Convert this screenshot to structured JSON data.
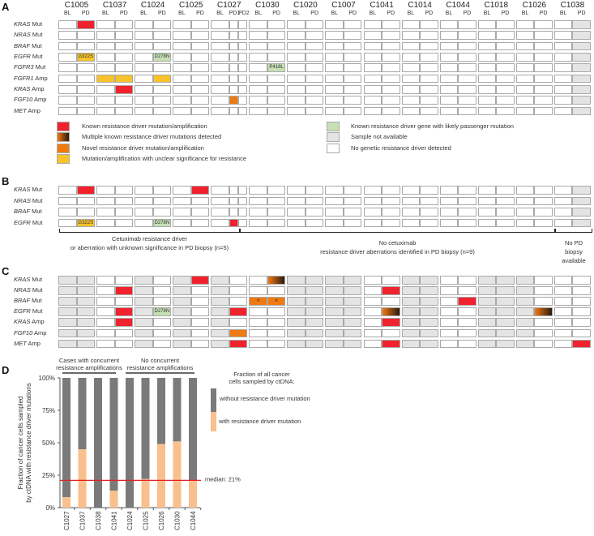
{
  "colors": {
    "known": "#f0222e",
    "multiple": "linear-gradient(90deg,#f07a10,#2a1a10)",
    "novel": "#f07a10",
    "unclear": "#f7c22a",
    "passenger": "#c6e0b4",
    "na": "#e4e4e4",
    "none": "#ffffff"
  },
  "patients": [
    "C1005",
    "C1037",
    "C1024",
    "C1025",
    "C1027",
    "C1030",
    "C1020",
    "C1007",
    "C1041",
    "C1014",
    "C1044",
    "C1018",
    "C1026",
    "C1038"
  ],
  "panels": [
    {
      "letter": "A",
      "show_header": true,
      "samples_override": {
        "C1027": [
          "BL",
          "PD1",
          "PD2"
        ]
      },
      "rows": [
        {
          "gene": "KRAS",
          "type": "Mut"
        },
        {
          "gene": "NRAS",
          "type": "Mut"
        },
        {
          "gene": "BRAF",
          "type": "Mut"
        },
        {
          "gene": "EGFR",
          "type": "Mut"
        },
        {
          "gene": "FGFR3",
          "type": "Mut"
        },
        {
          "gene": "FGFR1",
          "type": "Amp"
        },
        {
          "gene": "KRAS",
          "type": "Amp"
        },
        {
          "gene": "FGF10",
          "type": "Amp"
        },
        {
          "gene": "MET",
          "type": "Amp"
        }
      ],
      "unavailable": [
        [
          "C1038",
          "PD"
        ]
      ],
      "marks": [
        {
          "row": "KRAS Mut",
          "patient": "C1005",
          "sample": "PD",
          "status": "known"
        },
        {
          "row": "EGFR Mut",
          "patient": "C1005",
          "sample": "PD",
          "status": "unclear",
          "label": "G322S"
        },
        {
          "row": "EGFR Mut",
          "patient": "C1024",
          "sample": "PD",
          "status": "passenger",
          "label": "D278N"
        },
        {
          "row": "FGFR3 Mut",
          "patient": "C1030",
          "sample": "PD",
          "status": "passenger",
          "label": "P418L"
        },
        {
          "row": "FGFR1 Amp",
          "patient": "C1037",
          "sample": "BL",
          "status": "unclear"
        },
        {
          "row": "FGFR1 Amp",
          "patient": "C1037",
          "sample": "PD",
          "status": "unclear"
        },
        {
          "row": "FGFR1 Amp",
          "patient": "C1024",
          "sample": "PD",
          "status": "unclear"
        },
        {
          "row": "KRAS Amp",
          "patient": "C1037",
          "sample": "PD",
          "status": "known"
        },
        {
          "row": "FGF10 Amp",
          "patient": "C1027",
          "sample": "PD1",
          "status": "novel"
        }
      ]
    },
    {
      "letter": "B",
      "show_header": false,
      "samples_override": {
        "C1027": [
          "BL",
          "PD1",
          "PD2"
        ]
      },
      "rows": [
        {
          "gene": "KRAS",
          "type": "Mut"
        },
        {
          "gene": "NRAS",
          "type": "Mut"
        },
        {
          "gene": "BRAF",
          "type": "Mut"
        },
        {
          "gene": "EGFR",
          "type": "Mut"
        }
      ],
      "unavailable": [
        [
          "C1038",
          "PD"
        ]
      ],
      "marks": [
        {
          "row": "KRAS Mut",
          "patient": "C1005",
          "sample": "PD",
          "status": "known"
        },
        {
          "row": "KRAS Mut",
          "patient": "C1025",
          "sample": "PD",
          "status": "known"
        },
        {
          "row": "EGFR Mut",
          "patient": "C1005",
          "sample": "PD",
          "status": "unclear",
          "label": "G322S"
        },
        {
          "row": "EGFR Mut",
          "patient": "C1024",
          "sample": "PD",
          "status": "passenger",
          "label": "D278N"
        },
        {
          "row": "EGFR Mut",
          "patient": "C1027",
          "sample": "PD1",
          "status": "known"
        }
      ]
    },
    {
      "letter": "C",
      "show_header": false,
      "samples_override": {},
      "rows": [
        {
          "gene": "KRAS",
          "type": "Mut"
        },
        {
          "gene": "NRAS",
          "type": "Mut"
        },
        {
          "gene": "BRAF",
          "type": "Mut"
        },
        {
          "gene": "EGFR",
          "type": "Mut"
        },
        {
          "gene": "KRAS",
          "type": "Amp"
        },
        {
          "gene": "FGF10",
          "type": "Amp"
        },
        {
          "gene": "MET",
          "type": "Amp"
        }
      ],
      "unavailable": [
        [
          "C1005",
          "BL"
        ],
        [
          "C1005",
          "PD"
        ],
        [
          "C1024",
          "BL"
        ],
        [
          "C1025",
          "BL"
        ],
        [
          "C1027",
          "BL"
        ],
        [
          "C1020",
          "BL"
        ],
        [
          "C1020",
          "PD"
        ],
        [
          "C1007",
          "BL"
        ],
        [
          "C1007",
          "PD"
        ],
        [
          "C1014",
          "BL"
        ],
        [
          "C1014",
          "PD"
        ],
        [
          "C1018",
          "BL"
        ],
        [
          "C1018",
          "PD"
        ],
        [
          "C1026",
          "BL"
        ]
      ],
      "marks": [
        {
          "row": "NRAS Mut",
          "patient": "C1037",
          "sample": "PD",
          "status": "known"
        },
        {
          "row": "EGFR Mut",
          "patient": "C1037",
          "sample": "PD",
          "status": "known"
        },
        {
          "row": "KRAS Amp",
          "patient": "C1037",
          "sample": "PD",
          "status": "known"
        },
        {
          "row": "EGFR Mut",
          "patient": "C1024",
          "sample": "PD",
          "status": "passenger",
          "label": "D278N"
        },
        {
          "row": "KRAS Mut",
          "patient": "C1025",
          "sample": "PD",
          "status": "known"
        },
        {
          "row": "EGFR Mut",
          "patient": "C1027",
          "sample": "PD",
          "status": "known"
        },
        {
          "row": "FGF10 Amp",
          "patient": "C1027",
          "sample": "PD",
          "status": "novel"
        },
        {
          "row": "MET Amp",
          "patient": "C1027",
          "sample": "PD",
          "status": "known"
        },
        {
          "row": "KRAS Mut",
          "patient": "C1030",
          "sample": "PD",
          "status": "multiple"
        },
        {
          "row": "BRAF Mut",
          "patient": "C1030",
          "sample": "BL",
          "status": "novel",
          "label": "*"
        },
        {
          "row": "BRAF Mut",
          "patient": "C1030",
          "sample": "PD",
          "status": "novel",
          "label": "*"
        },
        {
          "row": "NRAS Mut",
          "patient": "C1041",
          "sample": "PD",
          "status": "known"
        },
        {
          "row": "EGFR Mut",
          "patient": "C1041",
          "sample": "PD",
          "status": "multiple"
        },
        {
          "row": "KRAS Amp",
          "patient": "C1041",
          "sample": "PD",
          "status": "known"
        },
        {
          "row": "MET Amp",
          "patient": "C1041",
          "sample": "PD",
          "status": "known"
        },
        {
          "row": "BRAF Mut",
          "patient": "C1044",
          "sample": "PD",
          "status": "known"
        },
        {
          "row": "EGFR Mut",
          "patient": "C1026",
          "sample": "PD",
          "status": "multiple"
        },
        {
          "row": "MET Amp",
          "patient": "C1038",
          "sample": "PD",
          "status": "known"
        }
      ]
    }
  ],
  "legend": {
    "left": [
      {
        "status": "known",
        "label": "Known resistance driver mutation/amplification"
      },
      {
        "status": "multiple",
        "label": "Multiple known resistance driver mutations detected"
      },
      {
        "status": "novel",
        "label": "Novel resistance driver mutation/amplification"
      },
      {
        "status": "unclear",
        "label": "Mutation/amplification with unclear significance for resistance"
      }
    ],
    "right": [
      {
        "status": "passenger",
        "label": "Known resistance driver gene with likely passenger mutation"
      },
      {
        "status": "na",
        "label": "Sample not available"
      },
      {
        "status": "none",
        "label": "No genetic resistance driver detected"
      }
    ]
  },
  "brackets_b": [
    {
      "lines": [
        "Cetuximab resistance driver",
        "or aberration with unknown significance in PD biopsy (n=5)"
      ]
    },
    {
      "lines": [
        "No cetuximab",
        "resistance driver aberrations identified in PD biopsy (n=9)"
      ]
    },
    {
      "lines": [
        "No PD",
        "biopsy",
        "available"
      ]
    }
  ],
  "panel_d": {
    "letter": "D",
    "groups": [
      {
        "lines": [
          "Cases with concurrent",
          "resistance amplifications"
        ]
      },
      {
        "lines": [
          "No concurrent",
          "resistance amplifications"
        ]
      }
    ],
    "legend_title": [
      "Fraction of all cancer",
      "cells sampled by ctDNA:"
    ]
  },
  "chart_data": {
    "type": "bar",
    "stacked": true,
    "categories": [
      "C1027",
      "C1037",
      "C1038",
      "C1041",
      "C1024",
      "C1025",
      "C1026",
      "C1030",
      "C1044"
    ],
    "series": [
      {
        "name": "with resistance driver mutation",
        "color": "#f9c08e",
        "values": [
          8,
          45,
          0,
          13,
          0,
          22,
          49,
          51,
          21
        ]
      },
      {
        "name": "without resistance driver mutation",
        "color": "#7a7a7a",
        "values": [
          92,
          55,
          100,
          87,
          100,
          78,
          51,
          49,
          79
        ]
      }
    ],
    "ylabel": [
      "Fraction of cancer cells sampled",
      "by ctDNA with resistance driver mutations"
    ],
    "yticks": [
      "0%",
      "25%",
      "50%",
      "75%",
      "100%"
    ],
    "ylim": [
      0,
      100
    ],
    "median": {
      "value": 21,
      "label": "median: 21%",
      "color": "#e02020"
    }
  }
}
